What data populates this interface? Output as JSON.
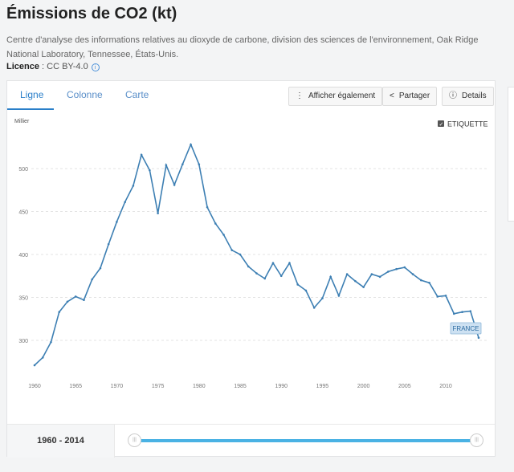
{
  "header": {
    "title": "Émissions de CO2 (kt)",
    "source": "Centre d'analyse des informations relatives au dioxyde de carbone, division des sciences de l'environnement, Oak Ridge National Laboratory, Tennessee, États-Unis.",
    "licence_label": "Licence",
    "licence_value": " : CC BY-4.0",
    "info_icon": "i"
  },
  "tabs": [
    {
      "label": "Ligne"
    },
    {
      "label": "Colonne"
    },
    {
      "label": "Carte"
    }
  ],
  "toolbar": {
    "also_show": "Afficher également",
    "also_show_icon": "⋮",
    "share": "Partager",
    "share_icon": "<",
    "details": "Details",
    "details_icon": "ⓘ"
  },
  "label_toggle": {
    "label": "ETIQUETTE",
    "checked": true
  },
  "range": {
    "start": "1960",
    "sep": " - ",
    "end": "2014",
    "handle_glyph": "|||"
  },
  "colors": {
    "line": "#3d7fb3",
    "accent": "#2a7fc9",
    "slider": "#4ab2e4",
    "label_bg": "#cde1f2"
  },
  "chart_data": {
    "type": "line",
    "title": "",
    "ylabel": "Millier",
    "xlabel": "",
    "ylim": [
      250,
      550
    ],
    "xlim": [
      1960,
      2014
    ],
    "yticks": [
      300,
      350,
      400,
      450,
      500
    ],
    "xticks": [
      1960,
      1965,
      1970,
      1975,
      1980,
      1985,
      1990,
      1995,
      2000,
      2005,
      2010
    ],
    "grid": true,
    "series": [
      {
        "name": "FRANCE",
        "x": [
          1960,
          1961,
          1962,
          1963,
          1964,
          1965,
          1966,
          1967,
          1968,
          1969,
          1970,
          1971,
          1972,
          1973,
          1974,
          1975,
          1976,
          1977,
          1978,
          1979,
          1980,
          1981,
          1982,
          1983,
          1984,
          1985,
          1986,
          1987,
          1988,
          1989,
          1990,
          1991,
          1992,
          1993,
          1994,
          1995,
          1996,
          1997,
          1998,
          1999,
          2000,
          2001,
          2002,
          2003,
          2004,
          2005,
          2006,
          2007,
          2008,
          2009,
          2010,
          2011,
          2012,
          2013,
          2014
        ],
        "values": [
          271,
          280,
          298,
          333,
          345,
          351,
          347,
          371,
          384,
          412,
          438,
          461,
          480,
          516,
          498,
          448,
          504,
          481,
          505,
          528,
          505,
          455,
          436,
          423,
          405,
          400,
          386,
          378,
          372,
          390,
          375,
          390,
          365,
          358,
          338,
          349,
          374,
          352,
          377,
          369,
          362,
          377,
          374,
          380,
          383,
          385,
          377,
          370,
          367,
          351,
          352,
          331,
          333,
          334,
          303
        ]
      }
    ]
  }
}
